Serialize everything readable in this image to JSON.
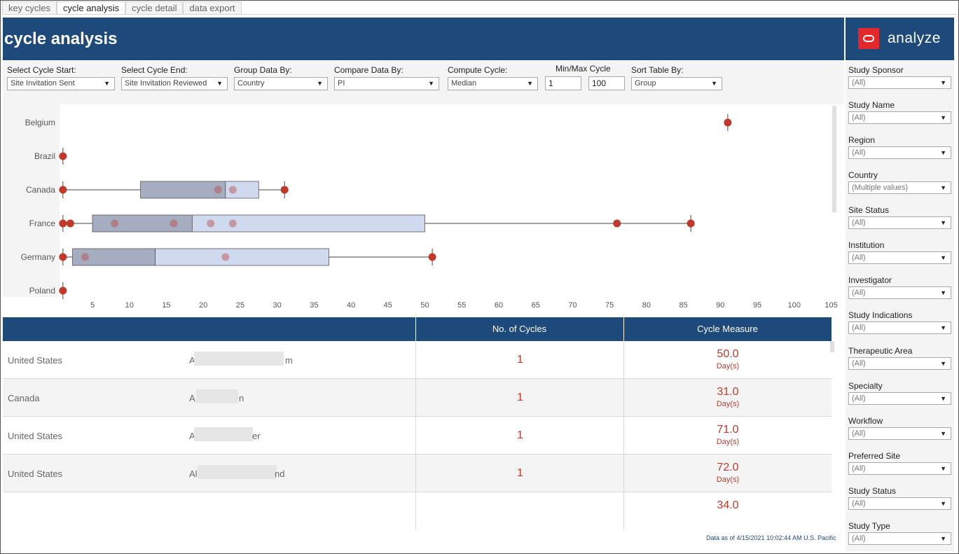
{
  "tabs": [
    "key cycles",
    "cycle analysis",
    "cycle detail",
    "data export"
  ],
  "active_tab": "cycle analysis",
  "page_title": "cycle analysis",
  "brand": {
    "name": "analyze",
    "logo_color": "#e2282b"
  },
  "colors": {
    "header": "#1d4a7a",
    "accent_red": "#c0392b",
    "box_dark": "#a6adc0",
    "box_light": "#d0daef"
  },
  "filters": {
    "cycle_start": {
      "label": "Select Cycle Start:",
      "value": "Site Invitation Sent"
    },
    "cycle_end": {
      "label": "Select Cycle End:",
      "value": "Site Invitation Reviewed"
    },
    "group_by": {
      "label": "Group Data By:",
      "value": "Country"
    },
    "compare_by": {
      "label": "Compare Data By:",
      "value": "PI"
    },
    "compute": {
      "label": "Compute Cycle:",
      "value": "Median"
    },
    "minmax": {
      "label": "Min/Max Cycle",
      "min": "1",
      "max": "100"
    },
    "sort_by": {
      "label": "Sort Table By:",
      "value": "Group"
    }
  },
  "chart_data": {
    "type": "boxplot",
    "categories": [
      "Belgium",
      "Brazil",
      "Canada",
      "France",
      "Germany",
      "Poland"
    ],
    "x_ticks": [
      5,
      10,
      15,
      20,
      25,
      30,
      35,
      40,
      45,
      50,
      55,
      60,
      65,
      70,
      75,
      80,
      85,
      90,
      95,
      100,
      105
    ],
    "xlim": [
      0.3,
      105.5
    ],
    "boxes": [
      {
        "category": "Belgium",
        "min": 91,
        "max": 91,
        "points": [
          91
        ],
        "outliers": [
          91
        ]
      },
      {
        "category": "Brazil",
        "min": 1,
        "max": 1,
        "points": [
          1
        ],
        "outliers": [
          1
        ]
      },
      {
        "category": "Canada",
        "min": 1,
        "q1": 11.5,
        "median": 23,
        "q3": 27.5,
        "max": 31,
        "points": [
          1,
          22,
          24,
          31
        ],
        "outliers": [
          1,
          31
        ]
      },
      {
        "category": "France",
        "min": 1,
        "q1": 5,
        "median": 18.5,
        "q3": 50,
        "max": 86,
        "points": [
          1,
          2,
          8,
          16,
          21,
          24,
          76,
          86
        ],
        "outliers": [
          1,
          2,
          76,
          86
        ]
      },
      {
        "category": "Germany",
        "min": 1,
        "q1": 2.3,
        "median": 13.5,
        "q3": 37,
        "max": 51,
        "points": [
          1,
          4,
          23,
          51
        ],
        "outliers": [
          1,
          51
        ]
      },
      {
        "category": "Poland",
        "min": 1,
        "max": 1,
        "points": [
          1
        ],
        "outliers": [
          1
        ]
      }
    ]
  },
  "table": {
    "headers": [
      "",
      "",
      "No. of Cycles",
      "Cycle Measure"
    ],
    "rows": [
      {
        "country": "United States",
        "name": "A",
        "name_tail": "m",
        "cycles": "1",
        "measure": "50.0",
        "unit": "Day(s)"
      },
      {
        "country": "Canada",
        "name": "A",
        "name_tail": "n",
        "cycles": "1",
        "measure": "31.0",
        "unit": "Day(s)"
      },
      {
        "country": "United States",
        "name": "A",
        "name_tail": "er",
        "cycles": "1",
        "measure": "71.0",
        "unit": "Day(s)"
      },
      {
        "country": "United States",
        "name": "Al",
        "name_tail": "nd",
        "cycles": "1",
        "measure": "72.0",
        "unit": "Day(s)"
      }
    ],
    "partial_measure": "34.0"
  },
  "footnote": "Data as of 4/15/2021 10:02:44 AM U.S. Pacific",
  "sidebar": {
    "filters": [
      {
        "label": "Study Sponsor",
        "value": "(All)"
      },
      {
        "label": "Study Name",
        "value": "(All)"
      },
      {
        "label": "Region",
        "value": "(All)"
      },
      {
        "label": "Country",
        "value": "(Multiple values)"
      },
      {
        "label": "Site Status",
        "value": "(All)"
      },
      {
        "label": "Institution",
        "value": "(All)"
      },
      {
        "label": "Investigator",
        "value": "(All)"
      },
      {
        "label": "Study Indications",
        "value": "(All)"
      },
      {
        "label": "Therapeutic Area",
        "value": "(All)"
      },
      {
        "label": "Specialty",
        "value": "(All)"
      },
      {
        "label": "Workflow",
        "value": "(All)"
      },
      {
        "label": "Preferred Site",
        "value": "(All)"
      },
      {
        "label": "Study Status",
        "value": "(All)"
      },
      {
        "label": "Study Type",
        "value": "(All)"
      }
    ]
  }
}
